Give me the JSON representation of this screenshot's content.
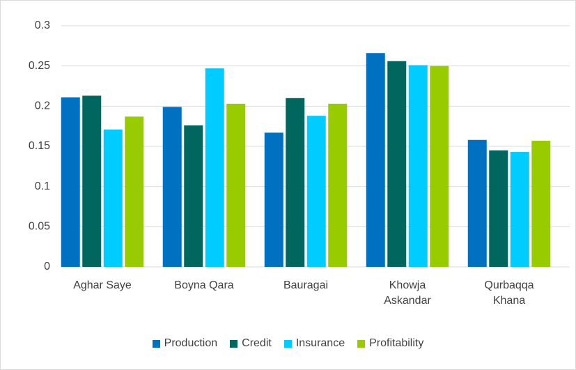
{
  "chart_data": {
    "type": "bar",
    "categories": [
      "Aghar Saye",
      "Boyna Qara",
      "Bauragai",
      "Khowja Askandar",
      "Qurbaqqa Khana"
    ],
    "series": [
      {
        "name": "Production",
        "color": "#0070c0",
        "values": [
          0.211,
          0.199,
          0.167,
          0.266,
          0.158
        ]
      },
      {
        "name": "Credit",
        "color": "#00665e",
        "values": [
          0.213,
          0.176,
          0.21,
          0.256,
          0.145
        ]
      },
      {
        "name": "Insurance",
        "color": "#00ccff",
        "values": [
          0.171,
          0.247,
          0.188,
          0.251,
          0.143
        ]
      },
      {
        "name": "Profitability",
        "color": "#99cc00",
        "values": [
          0.187,
          0.203,
          0.203,
          0.25,
          0.157
        ]
      }
    ],
    "ylim": [
      0,
      0.3
    ],
    "yticks": [
      0,
      0.05,
      0.1,
      0.15,
      0.2,
      0.25,
      0.3
    ],
    "grid": true,
    "legend": "bottom"
  }
}
